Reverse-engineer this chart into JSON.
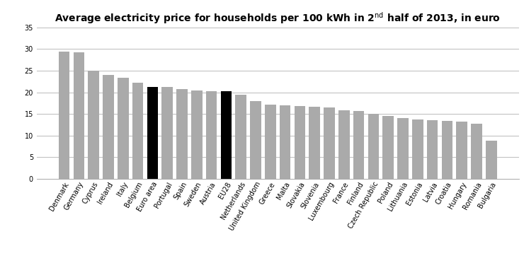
{
  "title": "Average electricity price for households per 100 kWh in 2$^{\\mathrm{nd}}$ half of 2013, in euro",
  "categories": [
    "Denmark",
    "Germany",
    "Cyprus",
    "Ireland",
    "Italy",
    "Belgium",
    "Euro area",
    "Portugal",
    "Spain",
    "Sweden",
    "Austria",
    "EU28",
    "Netherlands",
    "United Kingdom",
    "Greece",
    "Malta",
    "Slovakia",
    "Slovenia",
    "Luxembourg",
    "France",
    "Finland",
    "Czech Republic",
    "Poland",
    "Lithuania",
    "Estonia",
    "Latvia",
    "Croatia",
    "Hungary",
    "Romania",
    "Bulgaria"
  ],
  "values": [
    29.5,
    29.2,
    25.0,
    24.1,
    23.3,
    22.2,
    21.3,
    21.2,
    20.8,
    20.5,
    20.3,
    20.3,
    19.4,
    17.9,
    17.1,
    17.0,
    16.8,
    16.6,
    16.5,
    15.9,
    15.7,
    15.0,
    14.5,
    14.0,
    13.7,
    13.5,
    13.4,
    13.2,
    12.7,
    8.8
  ],
  "black_bars": [
    "Euro area",
    "EU28"
  ],
  "bar_color_normal": "#aaaaaa",
  "bar_color_black": "#000000",
  "ylim": [
    0,
    35
  ],
  "yticks": [
    0,
    5,
    10,
    15,
    20,
    25,
    30,
    35
  ],
  "background_color": "#ffffff",
  "grid_color": "#bbbbbb",
  "title_fontsize": 10,
  "tick_fontsize": 7
}
